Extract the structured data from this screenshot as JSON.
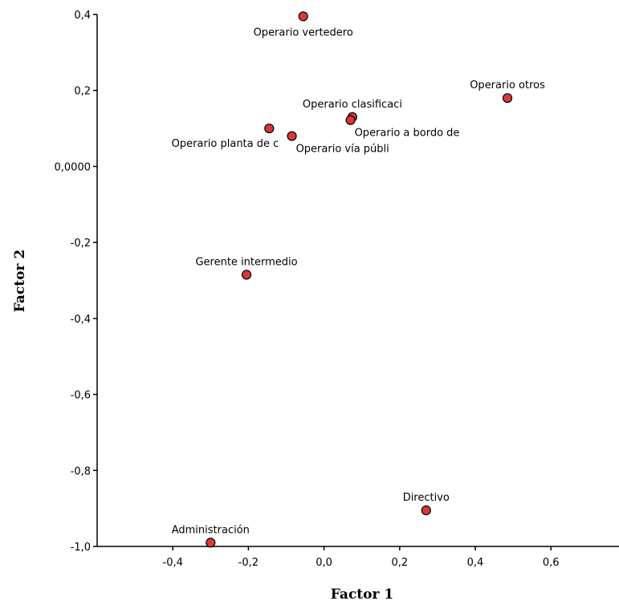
{
  "chart_data": {
    "type": "scatter",
    "xlabel": "Factor 1",
    "ylabel": "Factor 2",
    "xlim": [
      -0.6,
      0.78
    ],
    "ylim": [
      -1.0,
      0.4
    ],
    "x_ticks": [
      -0.4,
      -0.2,
      0.0,
      0.2,
      0.4,
      0.6
    ],
    "x_tick_labels": [
      "-0,4",
      "-0,2",
      "0,0",
      "0,2",
      "0,4",
      "0,6"
    ],
    "y_ticks": [
      0.4,
      0.2,
      0.0,
      -0.2,
      -0.4,
      -0.6,
      -0.8,
      -1.0
    ],
    "y_tick_labels": [
      "0,4",
      "0,2",
      "0,0000",
      "-0,2",
      "-0,4",
      "-0,6",
      "-0,8",
      "-1,0"
    ],
    "grid": false,
    "marker_color": "#d9383a",
    "points": [
      {
        "label": "Operario vertedero",
        "x": -0.055,
        "y": 0.395,
        "label_pos": "below"
      },
      {
        "label": "Operario otros",
        "x": 0.485,
        "y": 0.18,
        "label_pos": "above"
      },
      {
        "label": "Operario clasificaci",
        "x": 0.075,
        "y": 0.13,
        "label_pos": "above"
      },
      {
        "label": "Operario a bordo de",
        "x": 0.07,
        "y": 0.122,
        "label_pos": "below-right"
      },
      {
        "label": "Operario planta de c",
        "x": -0.145,
        "y": 0.1,
        "label_pos": "below-left"
      },
      {
        "label": "Operario vía públi",
        "x": -0.085,
        "y": 0.08,
        "label_pos": "below-right"
      },
      {
        "label": "Gerente intermedio",
        "x": -0.205,
        "y": -0.285,
        "label_pos": "above"
      },
      {
        "label": "Directivo",
        "x": 0.27,
        "y": -0.905,
        "label_pos": "above"
      },
      {
        "label": "Administración",
        "x": -0.3,
        "y": -0.99,
        "label_pos": "above"
      }
    ]
  }
}
